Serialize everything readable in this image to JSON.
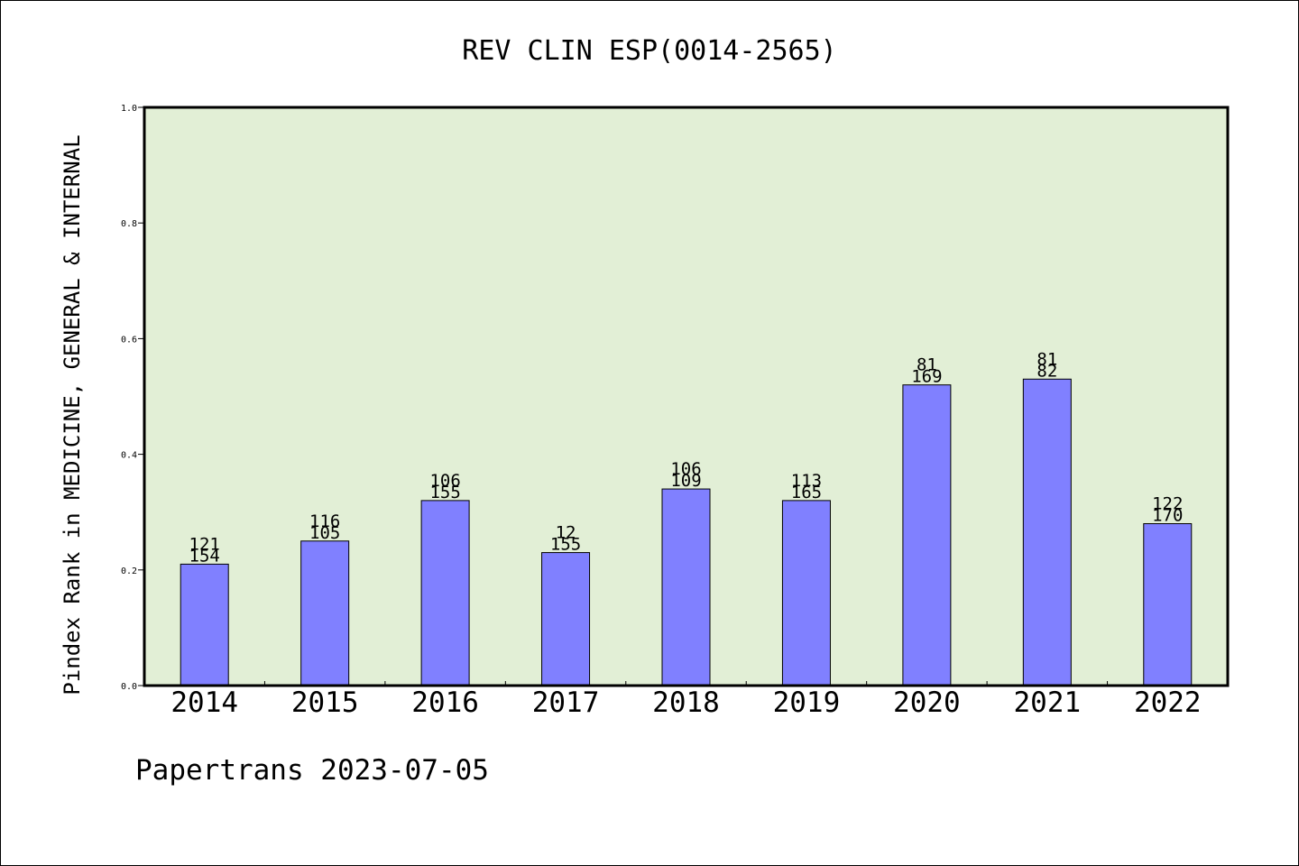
{
  "chart_data": {
    "type": "bar",
    "title": "REV CLIN ESP(0014-2565)",
    "ylabel": "Pindex Rank in MEDICINE, GENERAL & INTERNAL",
    "xlabel": "",
    "categories": [
      "2014",
      "2015",
      "2016",
      "2017",
      "2018",
      "2019",
      "2020",
      "2021",
      "2022"
    ],
    "values": [
      0.21,
      0.25,
      0.32,
      0.23,
      0.34,
      0.32,
      0.52,
      0.53,
      0.28
    ],
    "labels_top": [
      "121",
      "116",
      "106",
      "12",
      "106",
      "113",
      "81",
      "81",
      "122"
    ],
    "labels_bottom": [
      "154",
      "105",
      "155",
      "155",
      "109",
      "165",
      "169",
      "82",
      "170"
    ],
    "ylim": [
      0,
      1.0
    ],
    "yticks": [
      "0.0",
      "0.2",
      "0.4",
      "0.6",
      "0.8",
      "1.0"
    ],
    "grid": false,
    "colors": {
      "bar": "#8080ff",
      "plot_background": "#e2efd6",
      "axis": "#000000"
    }
  },
  "footer": {
    "credit": "Papertrans 2023-07-05"
  }
}
